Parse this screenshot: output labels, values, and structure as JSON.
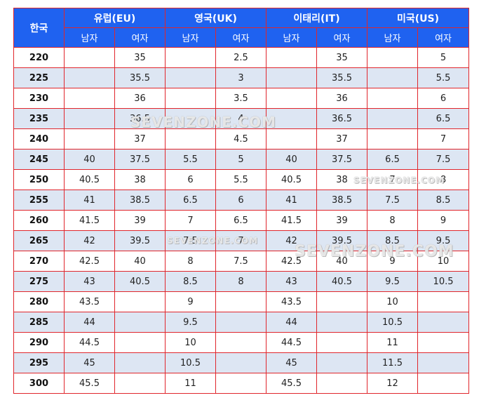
{
  "table": {
    "header_korea": "한국",
    "regions": [
      "유럽(EU)",
      "영국(UK)",
      "이태리(IT)",
      "미국(US)"
    ],
    "gender": {
      "male": "남자",
      "female": "여자"
    },
    "rows": [
      [
        "220",
        "",
        "35",
        "",
        "2.5",
        "",
        "35",
        "",
        "5"
      ],
      [
        "225",
        "",
        "35.5",
        "",
        "3",
        "",
        "35.5",
        "",
        "5.5"
      ],
      [
        "230",
        "",
        "36",
        "",
        "3.5",
        "",
        "36",
        "",
        "6"
      ],
      [
        "235",
        "",
        "36.5",
        "",
        "4",
        "",
        "36.5",
        "",
        "6.5"
      ],
      [
        "240",
        "",
        "37",
        "",
        "4.5",
        "",
        "37",
        "",
        "7"
      ],
      [
        "245",
        "40",
        "37.5",
        "5.5",
        "5",
        "40",
        "37.5",
        "6.5",
        "7.5"
      ],
      [
        "250",
        "40.5",
        "38",
        "6",
        "5.5",
        "40.5",
        "38",
        "7",
        "8"
      ],
      [
        "255",
        "41",
        "38.5",
        "6.5",
        "6",
        "41",
        "38.5",
        "7.5",
        "8.5"
      ],
      [
        "260",
        "41.5",
        "39",
        "7",
        "6.5",
        "41.5",
        "39",
        "8",
        "9"
      ],
      [
        "265",
        "42",
        "39.5",
        "7.5",
        "7",
        "42",
        "39.5",
        "8.5",
        "9.5"
      ],
      [
        "270",
        "42.5",
        "40",
        "8",
        "7.5",
        "42.5",
        "40",
        "9",
        "10"
      ],
      [
        "275",
        "43",
        "40.5",
        "8.5",
        "8",
        "43",
        "40.5",
        "9.5",
        "10.5"
      ],
      [
        "280",
        "43.5",
        "",
        "9",
        "",
        "43.5",
        "",
        "10",
        ""
      ],
      [
        "285",
        "44",
        "",
        "9.5",
        "",
        "44",
        "",
        "10.5",
        ""
      ],
      [
        "290",
        "44.5",
        "",
        "10",
        "",
        "44.5",
        "",
        "11",
        ""
      ],
      [
        "295",
        "45",
        "",
        "10.5",
        "",
        "45",
        "",
        "11.5",
        ""
      ],
      [
        "300",
        "45.5",
        "",
        "11",
        "",
        "45.5",
        "",
        "12",
        ""
      ]
    ]
  },
  "watermark": "SEVENZONE.COM",
  "colors": {
    "header_bg": "#1f62f0",
    "border": "#e0262c",
    "stripe": "#dde6f3"
  }
}
